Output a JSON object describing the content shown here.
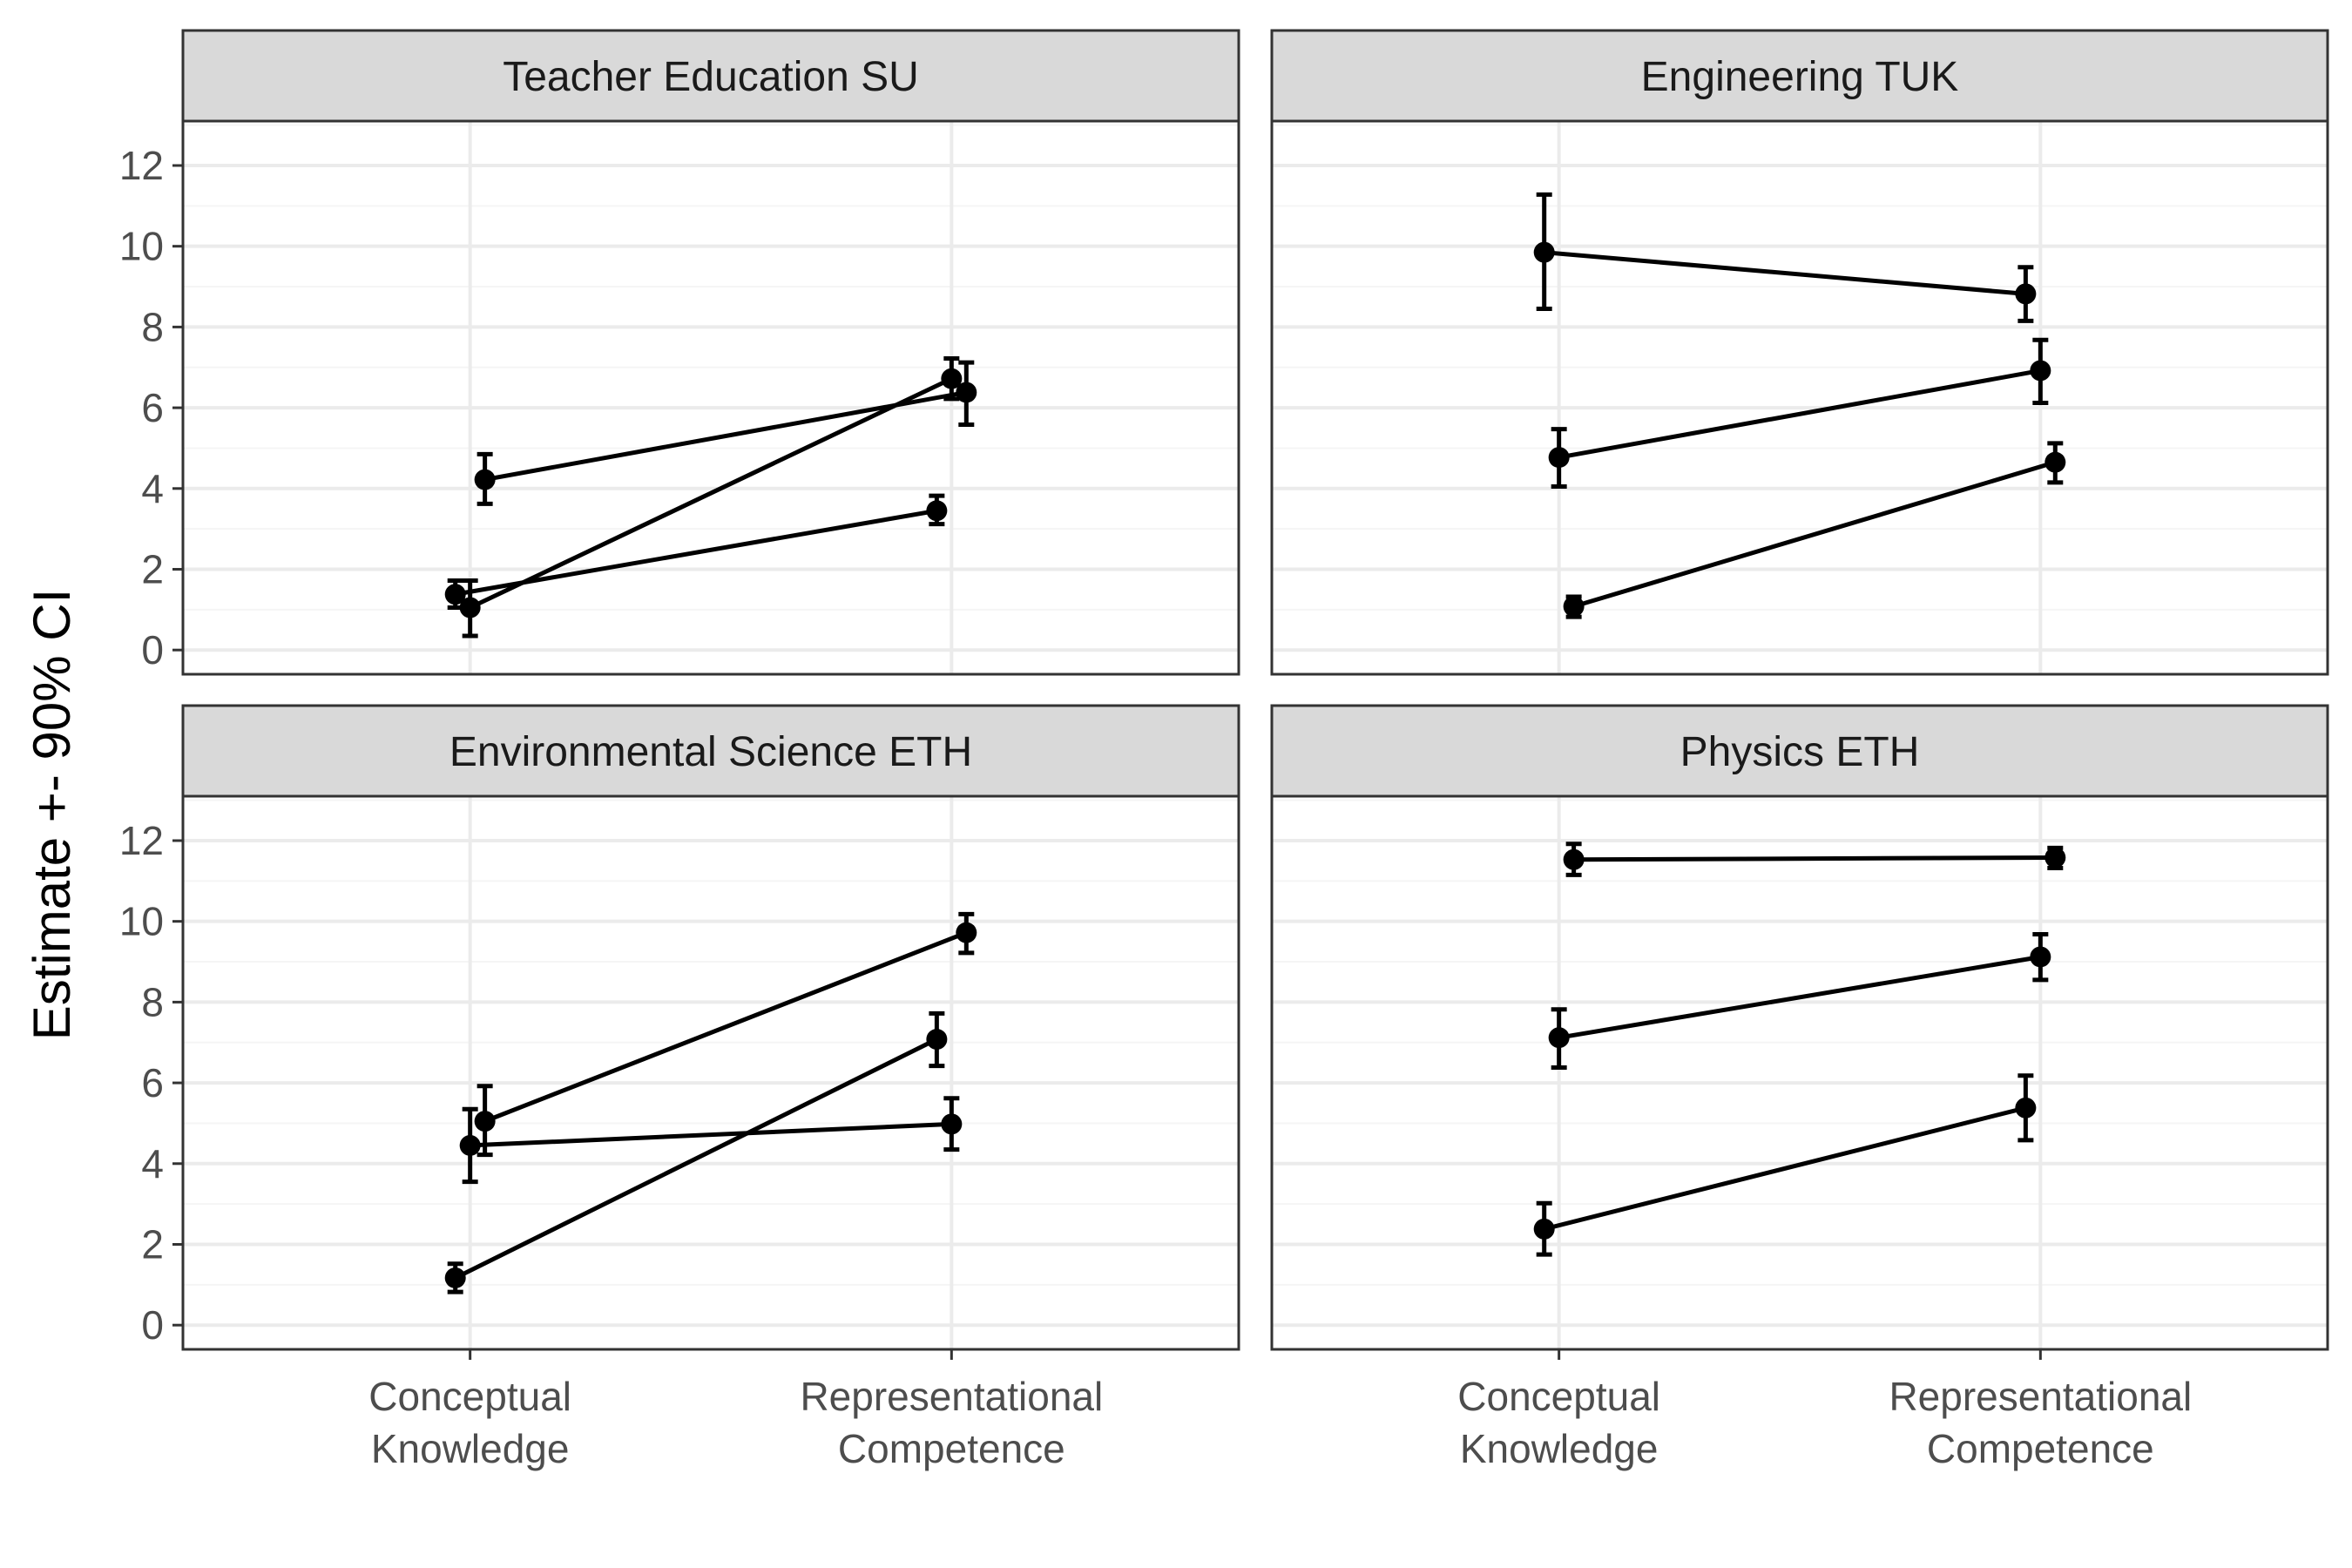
{
  "chart_data": {
    "type": "line",
    "facet_layout": "2x2",
    "ylabel": "Estimate +- 90% CI",
    "xlabel": "",
    "ylim": [
      -0.6,
      13.1
    ],
    "yticks": [
      0,
      2,
      4,
      6,
      8,
      10,
      12
    ],
    "categories": [
      [
        "Conceptual",
        "Knowledge"
      ],
      [
        "Representational",
        "Competence"
      ]
    ],
    "grid": true,
    "colors": {
      "line": "#000000",
      "strip_bg": "#d9d9d9",
      "grid_major": "#ebebeb",
      "grid_minor": "#f5f5f5",
      "axis_text": "#4d4d4d"
    },
    "panels": [
      {
        "title": "Teacher Education SU",
        "series": [
          {
            "values": [
              4.22,
              6.38
            ],
            "ci_low": [
              3.62,
              5.58
            ],
            "ci_high": [
              4.85,
              7.12
            ],
            "dodge": 0.014
          },
          {
            "values": [
              1.05,
              6.72
            ],
            "ci_low": [
              0.35,
              6.22
            ],
            "ci_high": [
              1.72,
              7.22
            ],
            "dodge": 0.0
          },
          {
            "values": [
              1.38,
              3.45
            ],
            "ci_low": [
              1.05,
              3.12
            ],
            "ci_high": [
              1.72,
              3.82
            ],
            "dodge": -0.014
          }
        ]
      },
      {
        "title": "Engineering TUK",
        "series": [
          {
            "values": [
              9.85,
              8.82
            ],
            "ci_low": [
              8.45,
              8.15
            ],
            "ci_high": [
              11.28,
              9.48
            ],
            "dodge": -0.014
          },
          {
            "values": [
              4.77,
              6.92
            ],
            "ci_low": [
              4.05,
              6.12
            ],
            "ci_high": [
              5.47,
              7.68
            ],
            "dodge": 0.0
          },
          {
            "values": [
              1.08,
              4.65
            ],
            "ci_low": [
              0.82,
              4.15
            ],
            "ci_high": [
              1.32,
              5.12
            ],
            "dodge": 0.014
          }
        ]
      },
      {
        "title": "Environmental Science ETH",
        "series": [
          {
            "values": [
              5.05,
              9.72
            ],
            "ci_low": [
              4.22,
              9.22
            ],
            "ci_high": [
              5.92,
              10.18
            ],
            "dodge": 0.014
          },
          {
            "values": [
              4.45,
              4.98
            ],
            "ci_low": [
              3.55,
              4.35
            ],
            "ci_high": [
              5.35,
              5.62
            ],
            "dodge": 0.0
          },
          {
            "values": [
              1.17,
              7.08
            ],
            "ci_low": [
              0.82,
              6.42
            ],
            "ci_high": [
              1.52,
              7.72
            ],
            "dodge": -0.014
          }
        ]
      },
      {
        "title": "Physics ETH",
        "series": [
          {
            "values": [
              11.53,
              11.58
            ],
            "ci_low": [
              11.15,
              11.32
            ],
            "ci_high": [
              11.92,
              11.82
            ],
            "dodge": 0.014
          },
          {
            "values": [
              7.12,
              9.12
            ],
            "ci_low": [
              6.38,
              8.55
            ],
            "ci_high": [
              7.82,
              9.68
            ],
            "dodge": 0.0
          },
          {
            "values": [
              2.38,
              5.38
            ],
            "ci_low": [
              1.75,
              4.58
            ],
            "ci_high": [
              3.02,
              6.18
            ],
            "dodge": -0.014
          }
        ]
      }
    ]
  }
}
